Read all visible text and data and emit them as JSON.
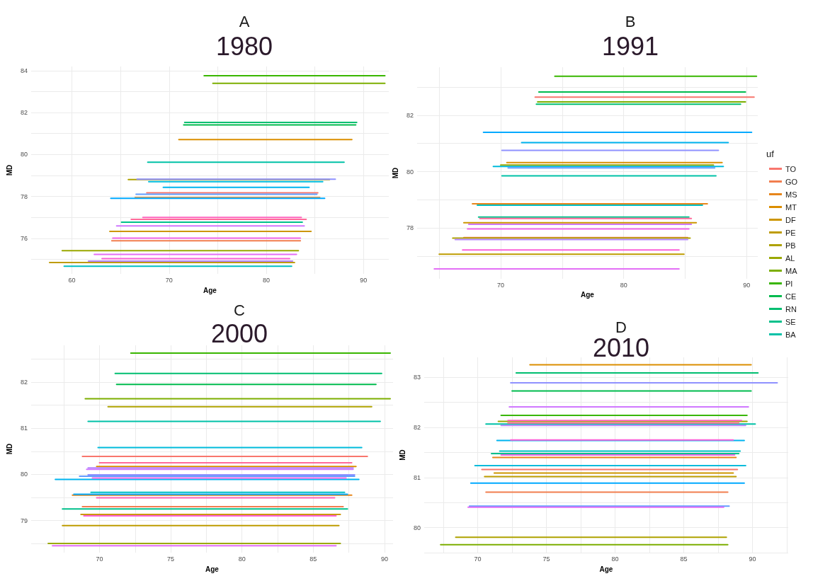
{
  "chart_data": [
    {
      "type": "line",
      "title": "A",
      "subtitle": "1980",
      "xlabel": "Age",
      "ylabel": "MD",
      "xlim": [
        55.8,
        92.6
      ],
      "ylim": [
        74.3,
        84.2
      ],
      "xticks": [
        60,
        {
          "value": 65,
          "label": null
        },
        70,
        {
          "value": 75,
          "label": null
        },
        80,
        {
          "value": 85,
          "label": null
        },
        90
      ],
      "yticks": [
        {
          "value": 75,
          "label": null
        },
        76,
        {
          "value": 77,
          "label": null
        },
        78,
        {
          "value": 79,
          "label": null
        },
        80,
        {
          "value": 81,
          "label": null
        },
        82,
        {
          "value": 83,
          "label": null
        },
        84
      ],
      "grid": true,
      "series": [
        {
          "color": "#f8766d",
          "x": [
            67.7,
            85.3
          ],
          "values": [
            78.17,
            78.17
          ]
        },
        {
          "color": "#f17e4f",
          "x": [
            64.1,
            83.5
          ],
          "values": [
            75.88,
            75.88
          ]
        },
        {
          "color": "#e7861b",
          "x": [
            66.5,
            85.5
          ],
          "values": [
            77.94,
            77.94
          ]
        },
        {
          "color": "#db8e00",
          "x": [
            71.0,
            88.8
          ],
          "values": [
            80.71,
            80.71
          ]
        },
        {
          "color": "#cd9600",
          "x": [
            63.9,
            84.6
          ],
          "values": [
            76.33,
            76.33
          ]
        },
        {
          "color": "#be9c00",
          "x": [
            57.7,
            82.9
          ],
          "values": [
            74.84,
            74.84
          ]
        },
        {
          "color": "#aea200",
          "x": [
            65.8,
            86.5
          ],
          "values": [
            78.8,
            78.8
          ]
        },
        {
          "color": "#9aa800",
          "x": [
            59.0,
            83.3
          ],
          "values": [
            75.41,
            75.41
          ]
        },
        {
          "color": "#7cae00",
          "x": [
            74.5,
            92.2
          ],
          "values": [
            83.4,
            83.4
          ]
        },
        {
          "color": "#39b600",
          "x": [
            73.6,
            92.2
          ],
          "values": [
            83.76,
            83.76
          ]
        },
        {
          "color": "#00bb4e",
          "x": [
            71.5,
            89.2
          ],
          "values": [
            81.41,
            81.41
          ]
        },
        {
          "color": "#00be70",
          "x": [
            71.6,
            89.3
          ],
          "values": [
            81.53,
            81.53
          ]
        },
        {
          "color": "#00c08b",
          "x": [
            65.1,
            83.7
          ],
          "values": [
            76.77,
            76.77
          ]
        },
        {
          "color": "#00c1a7",
          "x": [
            67.8,
            88.0
          ],
          "values": [
            79.63,
            79.63
          ]
        },
        {
          "color": "#00bfc4",
          "x": [
            59.2,
            82.6
          ],
          "values": [
            74.67,
            74.67
          ]
        },
        {
          "color": "#00bbdb",
          "x": [
            67.9,
            85.8
          ],
          "values": [
            78.7,
            78.7
          ]
        },
        {
          "color": "#00b4ef",
          "x": [
            69.4,
            84.4
          ],
          "values": [
            78.43,
            78.43
          ]
        },
        {
          "color": "#00a9ff",
          "x": [
            64.0,
            86.0
          ],
          "values": [
            77.91,
            77.91
          ]
        },
        {
          "color": "#619cff",
          "x": [
            66.6,
            85.2
          ],
          "values": [
            78.1,
            78.1
          ]
        },
        {
          "color": "#8f91ff",
          "x": [
            66.7,
            87.1
          ],
          "values": [
            78.82,
            78.82
          ]
        },
        {
          "color": "#b385ff",
          "x": [
            61.7,
            82.7
          ],
          "values": [
            74.91,
            74.91
          ]
        },
        {
          "color": "#cf78ff",
          "x": [
            64.6,
            83.9
          ],
          "values": [
            76.59,
            76.59
          ]
        },
        {
          "color": "#e36ef6",
          "x": [
            62.3,
            83.1
          ],
          "values": [
            75.23,
            75.23
          ]
        },
        {
          "color": "#f166e8",
          "x": [
            64.2,
            83.5
          ],
          "values": [
            76.01,
            76.01
          ]
        },
        {
          "color": "#fb61d7",
          "x": [
            63.1,
            82.4
          ],
          "values": [
            75.03,
            75.03
          ]
        },
        {
          "color": "#ff62bc",
          "x": [
            67.3,
            83.6
          ],
          "values": [
            77.0,
            77.0
          ]
        },
        {
          "color": "#ff6a9a",
          "x": [
            66.1,
            84.1
          ],
          "values": [
            76.9,
            76.9
          ]
        }
      ]
    },
    {
      "type": "line",
      "title": "B",
      "subtitle": "1991",
      "xlabel": "Age",
      "ylabel": "MD",
      "legend": "right",
      "legend_title": "uf",
      "xlim": [
        63.2,
        90.9
      ],
      "ylim": [
        76.2,
        83.7
      ],
      "xticks": [
        {
          "value": 65,
          "label": null
        },
        70,
        {
          "value": 75,
          "label": null
        },
        80,
        {
          "value": 85,
          "label": null
        },
        90
      ],
      "yticks": [
        {
          "value": 77,
          "label": null
        },
        78,
        {
          "value": 79,
          "label": null
        },
        80,
        {
          "value": 81,
          "label": null
        },
        82,
        {
          "value": 83,
          "label": null
        }
      ],
      "grid": true,
      "series": [
        {
          "name": "TO",
          "color": "#f8766d",
          "x": [
            72.8,
            90.6
          ],
          "values": [
            82.64,
            82.64
          ]
        },
        {
          "name": "GO",
          "color": "#f17e4f",
          "x": [
            67.0,
            85.2
          ],
          "values": [
            77.66,
            77.66
          ]
        },
        {
          "name": "MS",
          "color": "#e7861b",
          "x": [
            67.7,
            86.8
          ],
          "values": [
            78.86,
            78.86
          ]
        },
        {
          "name": "MT",
          "color": "#db8e00",
          "x": [
            70.5,
            88.0
          ],
          "values": [
            80.32,
            80.32
          ]
        },
        {
          "name": "DF",
          "color": "#cd9600",
          "x": [
            67.0,
            85.9
          ],
          "values": [
            78.19,
            78.19
          ]
        },
        {
          "name": "PE",
          "color": "#be9c00",
          "x": [
            65.0,
            84.9
          ],
          "values": [
            77.07,
            77.07
          ]
        },
        {
          "name": "PB",
          "color": "#aea200",
          "x": [
            66.1,
            85.4
          ],
          "values": [
            77.64,
            77.64
          ]
        },
        {
          "name": "AL",
          "color": "#9aa800",
          "x": [
            70.0,
            87.3
          ],
          "values": [
            80.23,
            80.23
          ]
        },
        {
          "name": "MA",
          "color": "#7cae00",
          "x": [
            73.0,
            89.9
          ],
          "values": [
            82.47,
            82.47
          ]
        },
        {
          "name": "PI",
          "color": "#39b600",
          "x": [
            74.4,
            90.8
          ],
          "values": [
            83.38,
            83.38
          ]
        },
        {
          "name": "CE",
          "color": "#00bb4e",
          "x": [
            73.1,
            89.9
          ],
          "values": [
            82.82,
            82.82
          ]
        },
        {
          "name": "RN",
          "color": "#00be70",
          "x": [
            72.9,
            89.5
          ],
          "values": [
            82.39,
            82.39
          ]
        },
        {
          "name": "SE",
          "color": "#00c08b",
          "x": [
            68.2,
            85.3
          ],
          "values": [
            78.39,
            78.39
          ]
        },
        {
          "name": "BA",
          "color": "#00c1a7",
          "x": [
            70.1,
            87.5
          ],
          "values": [
            79.85,
            79.85
          ]
        },
        {
          "color": "#00bfc4",
          "x": [
            68.1,
            86.4
          ],
          "values": [
            78.81,
            78.81
          ]
        },
        {
          "color": "#00bbdb",
          "x": [
            69.4,
            88.1
          ],
          "values": [
            80.18,
            80.18
          ]
        },
        {
          "color": "#00b4ef",
          "x": [
            71.7,
            88.5
          ],
          "values": [
            81.03,
            81.03
          ]
        },
        {
          "color": "#00a9ff",
          "x": [
            68.6,
            90.4
          ],
          "values": [
            81.39,
            81.39
          ]
        },
        {
          "color": "#619cff",
          "x": [
            70.6,
            87.4
          ],
          "values": [
            80.13,
            80.13
          ]
        },
        {
          "color": "#8f91ff",
          "x": [
            70.1,
            87.7
          ],
          "values": [
            80.75,
            80.75
          ]
        },
        {
          "color": "#b385ff",
          "x": [
            66.3,
            85.2
          ],
          "values": [
            77.59,
            77.59
          ]
        },
        {
          "color": "#cf78ff",
          "x": [
            67.4,
            85.5
          ],
          "values": [
            78.13,
            78.13
          ]
        },
        {
          "color": "#e36ef6",
          "x": [
            64.6,
            84.5
          ],
          "values": [
            76.55,
            76.55
          ]
        },
        {
          "color": "#f166e8",
          "x": [
            67.3,
            85.3
          ],
          "values": [
            77.97,
            77.97
          ]
        },
        {
          "color": "#fb61d7",
          "x": [
            66.9,
            84.5
          ],
          "values": [
            77.22,
            77.22
          ]
        },
        {
          "color": "#ff6a9a",
          "x": [
            68.3,
            85.5
          ],
          "values": [
            78.34,
            78.34
          ]
        }
      ]
    },
    {
      "type": "line",
      "title": "C",
      "subtitle": "2000",
      "xlabel": "Age",
      "ylabel": "MD",
      "xlim": [
        65.2,
        90.6
      ],
      "ylim": [
        78.3,
        82.8
      ],
      "xticks": [
        {
          "value": 67.5,
          "label": null
        },
        70,
        {
          "value": 72.5,
          "label": null
        },
        75,
        {
          "value": 77.5,
          "label": null
        },
        80,
        {
          "value": 82.5,
          "label": null
        },
        85,
        {
          "value": 87.5,
          "label": null
        },
        90
      ],
      "yticks": [
        {
          "value": 78.5,
          "label": null
        },
        79,
        {
          "value": 79.5,
          "label": null
        },
        80,
        {
          "value": 80.5,
          "label": null
        },
        81,
        {
          "value": 81.5,
          "label": null
        },
        82,
        {
          "value": 82.5,
          "label": null
        }
      ],
      "grid": true,
      "series": [
        {
          "color": "#f8766d",
          "x": [
            68.8,
            88.8
          ],
          "values": [
            80.39,
            80.39
          ]
        },
        {
          "color": "#f17e4f",
          "x": [
            68.8,
            87.1
          ],
          "values": [
            79.3,
            79.3
          ]
        },
        {
          "color": "#e7861b",
          "x": [
            68.1,
            87.7
          ],
          "values": [
            79.55,
            79.55
          ]
        },
        {
          "color": "#db8e00",
          "x": [
            69.8,
            88.0
          ],
          "values": [
            80.17,
            80.17
          ]
        },
        {
          "color": "#cd9600",
          "x": [
            68.7,
            86.9
          ],
          "values": [
            79.13,
            79.13
          ]
        },
        {
          "color": "#be9c00",
          "x": [
            67.4,
            86.8
          ],
          "values": [
            78.89,
            78.89
          ]
        },
        {
          "color": "#aea200",
          "x": [
            70.6,
            89.1
          ],
          "values": [
            81.47,
            81.47
          ]
        },
        {
          "color": "#9aa800",
          "x": [
            66.4,
            86.9
          ],
          "values": [
            78.5,
            78.5
          ]
        },
        {
          "color": "#7cae00",
          "x": [
            69.0,
            90.4
          ],
          "values": [
            81.64,
            81.64
          ]
        },
        {
          "color": "#39b600",
          "x": [
            72.2,
            90.4
          ],
          "values": [
            82.63,
            82.63
          ]
        },
        {
          "color": "#00bb4e",
          "x": [
            71.2,
            89.4
          ],
          "values": [
            81.95,
            81.95
          ]
        },
        {
          "color": "#00be70",
          "x": [
            71.1,
            89.8
          ],
          "values": [
            82.19,
            82.19
          ]
        },
        {
          "color": "#00c08b",
          "x": [
            67.4,
            87.4
          ],
          "values": [
            79.25,
            79.25
          ]
        },
        {
          "color": "#00c1a7",
          "x": [
            69.2,
            89.7
          ],
          "values": [
            81.15,
            81.15
          ]
        },
        {
          "color": "#00bfc4",
          "x": [
            69.4,
            87.2
          ],
          "values": [
            79.61,
            79.61
          ]
        },
        {
          "color": "#00bbdb",
          "x": [
            69.9,
            88.4
          ],
          "values": [
            80.58,
            80.58
          ]
        },
        {
          "color": "#00b4ef",
          "x": [
            66.9,
            88.2
          ],
          "values": [
            79.89,
            79.89
          ]
        },
        {
          "color": "#00a9ff",
          "x": [
            68.2,
            87.4
          ],
          "values": [
            79.57,
            79.57
          ]
        },
        {
          "color": "#619cff",
          "x": [
            68.6,
            87.9
          ],
          "values": [
            79.96,
            79.96
          ]
        },
        {
          "color": "#8f91ff",
          "x": [
            69.2,
            87.9
          ],
          "values": [
            79.99,
            79.99
          ]
        },
        {
          "color": "#b385ff",
          "x": [
            69.2,
            87.8
          ],
          "values": [
            80.14,
            80.14
          ]
        },
        {
          "color": "#cf78ff",
          "x": [
            69.1,
            87.8
          ],
          "values": [
            80.11,
            80.11
          ]
        },
        {
          "color": "#e36ef6",
          "x": [
            66.7,
            86.6
          ],
          "values": [
            78.45,
            78.45
          ]
        },
        {
          "color": "#f166e8",
          "x": [
            69.5,
            87.3
          ],
          "values": [
            79.92,
            79.92
          ]
        },
        {
          "color": "#fb61d7",
          "x": [
            68.9,
            86.6
          ],
          "values": [
            79.1,
            79.1
          ]
        },
        {
          "color": "#ff62bc",
          "x": [
            69.8,
            86.5
          ],
          "values": [
            79.49,
            79.49
          ]
        },
        {
          "color": "#ff6a9a",
          "x": [
            70.0,
            87.7
          ],
          "values": [
            80.25,
            80.25
          ]
        }
      ]
    },
    {
      "type": "line",
      "title": "D",
      "subtitle": "2010",
      "xlabel": "Age",
      "ylabel": "MD",
      "xlim": [
        66.1,
        92.6
      ],
      "ylim": [
        79.5,
        83.4
      ],
      "xticks": [
        {
          "value": 67.5,
          "label": null
        },
        70,
        {
          "value": 72.5,
          "label": null
        },
        75,
        {
          "value": 77.5,
          "label": null
        },
        80,
        {
          "value": 82.5,
          "label": null
        },
        85,
        {
          "value": 87.5,
          "label": null
        },
        90,
        {
          "value": 92.5,
          "label": null
        }
      ],
      "yticks": [
        {
          "value": 79.5,
          "label": null
        },
        80,
        {
          "value": 80.5,
          "label": null
        },
        81,
        {
          "value": 81.5,
          "label": null
        },
        82,
        {
          "value": 82.5,
          "label": null
        },
        83
      ],
      "grid": true,
      "series": [
        {
          "color": "#f8766d",
          "x": [
            70.3,
            88.9
          ],
          "values": [
            81.16,
            81.16
          ]
        },
        {
          "color": "#f17e4f",
          "x": [
            70.6,
            88.2
          ],
          "values": [
            80.71,
            80.71
          ]
        },
        {
          "color": "#e7861b",
          "x": [
            71.1,
            88.8
          ],
          "values": [
            81.4,
            81.4
          ]
        },
        {
          "color": "#db8e00",
          "x": [
            73.8,
            89.9
          ],
          "values": [
            83.25,
            83.25
          ]
        },
        {
          "color": "#cd9600",
          "x": [
            71.2,
            88.6
          ],
          "values": [
            81.09,
            81.09
          ]
        },
        {
          "color": "#be9c00",
          "x": [
            70.5,
            88.8
          ],
          "values": [
            81.02,
            81.02
          ]
        },
        {
          "color": "#aea200",
          "x": [
            68.4,
            88.1
          ],
          "values": [
            79.81,
            79.81
          ]
        },
        {
          "color": "#9aa800",
          "x": [
            71.5,
            89.6
          ],
          "values": [
            82.12,
            82.12
          ]
        },
        {
          "color": "#7cae00",
          "x": [
            67.3,
            88.2
          ],
          "values": [
            79.66,
            79.66
          ]
        },
        {
          "color": "#39b600",
          "x": [
            71.7,
            89.6
          ],
          "values": [
            82.24,
            82.24
          ]
        },
        {
          "color": "#00bb4e",
          "x": [
            72.5,
            89.9
          ],
          "values": [
            82.73,
            82.73
          ]
        },
        {
          "color": "#00be70",
          "x": [
            72.8,
            90.4
          ],
          "values": [
            83.09,
            83.09
          ]
        },
        {
          "color": "#00c08b",
          "x": [
            71.0,
            89.0
          ],
          "values": [
            81.48,
            81.48
          ]
        },
        {
          "color": "#00c1a7",
          "x": [
            70.6,
            90.2
          ],
          "values": [
            82.07,
            82.07
          ]
        },
        {
          "color": "#00bfc4",
          "x": [
            71.6,
            89.1
          ],
          "values": [
            81.53,
            81.53
          ]
        },
        {
          "color": "#00bbdb",
          "x": [
            69.8,
            89.5
          ],
          "values": [
            81.24,
            81.24
          ]
        },
        {
          "color": "#00b4ef",
          "x": [
            71.4,
            89.4
          ],
          "values": [
            81.74,
            81.74
          ]
        },
        {
          "color": "#00a9ff",
          "x": [
            69.5,
            89.4
          ],
          "values": [
            80.89,
            80.89
          ]
        },
        {
          "color": "#619cff",
          "x": [
            69.4,
            88.3
          ],
          "values": [
            80.43,
            80.43
          ]
        },
        {
          "color": "#8f91ff",
          "x": [
            72.4,
            91.8
          ],
          "values": [
            82.89,
            82.89
          ]
        },
        {
          "color": "#b385ff",
          "x": [
            71.7,
            89.5
          ],
          "values": [
            82.04,
            82.04
          ]
        },
        {
          "color": "#cf78ff",
          "x": [
            72.3,
            89.7
          ],
          "values": [
            82.41,
            82.41
          ]
        },
        {
          "color": "#e36ef6",
          "x": [
            69.3,
            87.9
          ],
          "values": [
            80.41,
            80.41
          ]
        },
        {
          "color": "#f166e8",
          "x": [
            71.7,
            88.7
          ],
          "values": [
            81.45,
            81.45
          ]
        },
        {
          "color": "#fb61d7",
          "x": [
            72.4,
            88.6
          ],
          "values": [
            81.75,
            81.75
          ]
        },
        {
          "color": "#ff62bc",
          "x": [
            72.2,
            89.2
          ],
          "values": [
            82.14,
            82.14
          ]
        },
        {
          "color": "#ff6a9a",
          "x": [
            72.2,
            89.0
          ],
          "values": [
            82.09,
            82.09
          ]
        }
      ]
    }
  ]
}
